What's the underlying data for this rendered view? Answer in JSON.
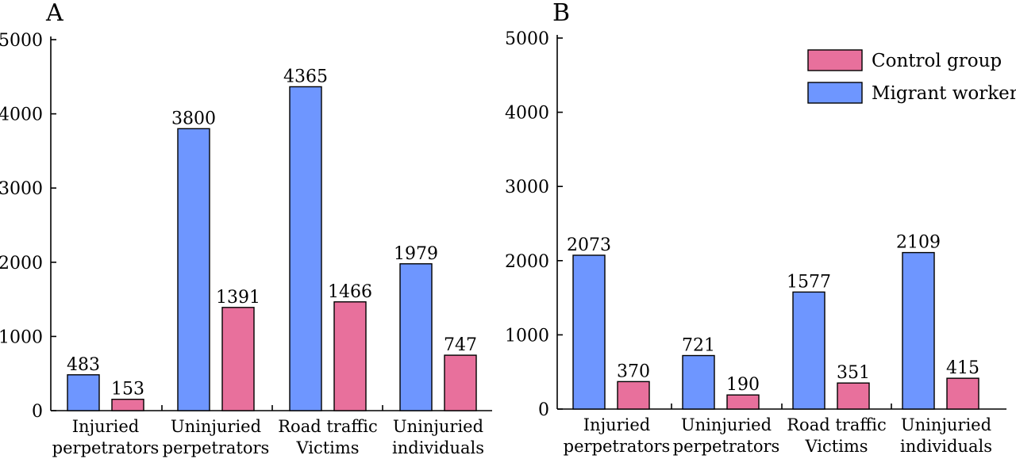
{
  "chart_data": [
    {
      "type": "bar",
      "panel_label": "A",
      "categories": [
        [
          "Injuried",
          "perpetrators"
        ],
        [
          "Uninjuried",
          "perpetrators"
        ],
        [
          "Road traffic",
          "Victims"
        ],
        [
          "Uninjuried",
          "individuals"
        ]
      ],
      "series": [
        {
          "name": "Migrant workers",
          "color": "#6e96ff",
          "values": [
            483,
            3800,
            4365,
            1979
          ]
        },
        {
          "name": "Control group",
          "color": "#e8709c",
          "values": [
            153,
            1391,
            1466,
            747
          ]
        }
      ],
      "ylim": [
        0,
        5000
      ],
      "yticks": [
        0,
        1000,
        2000,
        3000,
        4000,
        5000
      ],
      "grid": false
    },
    {
      "type": "bar",
      "panel_label": "B",
      "categories": [
        [
          "Injuried",
          "perpetrators"
        ],
        [
          "Uninjuried",
          "perpetrators"
        ],
        [
          "Road traffic",
          "Victims"
        ],
        [
          "Uninjuried",
          "individuals"
        ]
      ],
      "series": [
        {
          "name": "Migrant workers",
          "color": "#6e96ff",
          "values": [
            2073,
            721,
            1577,
            2109
          ]
        },
        {
          "name": "Control group",
          "color": "#e8709c",
          "values": [
            370,
            190,
            351,
            415
          ]
        }
      ],
      "ylim": [
        0,
        5000
      ],
      "yticks": [
        0,
        1000,
        2000,
        3000,
        4000,
        5000
      ],
      "grid": false,
      "legend": {
        "placement": "top-right",
        "entries": [
          {
            "label": "Control group",
            "color": "#e8709c"
          },
          {
            "label": "Migrant workers",
            "color": "#6e96ff"
          }
        ]
      }
    }
  ]
}
